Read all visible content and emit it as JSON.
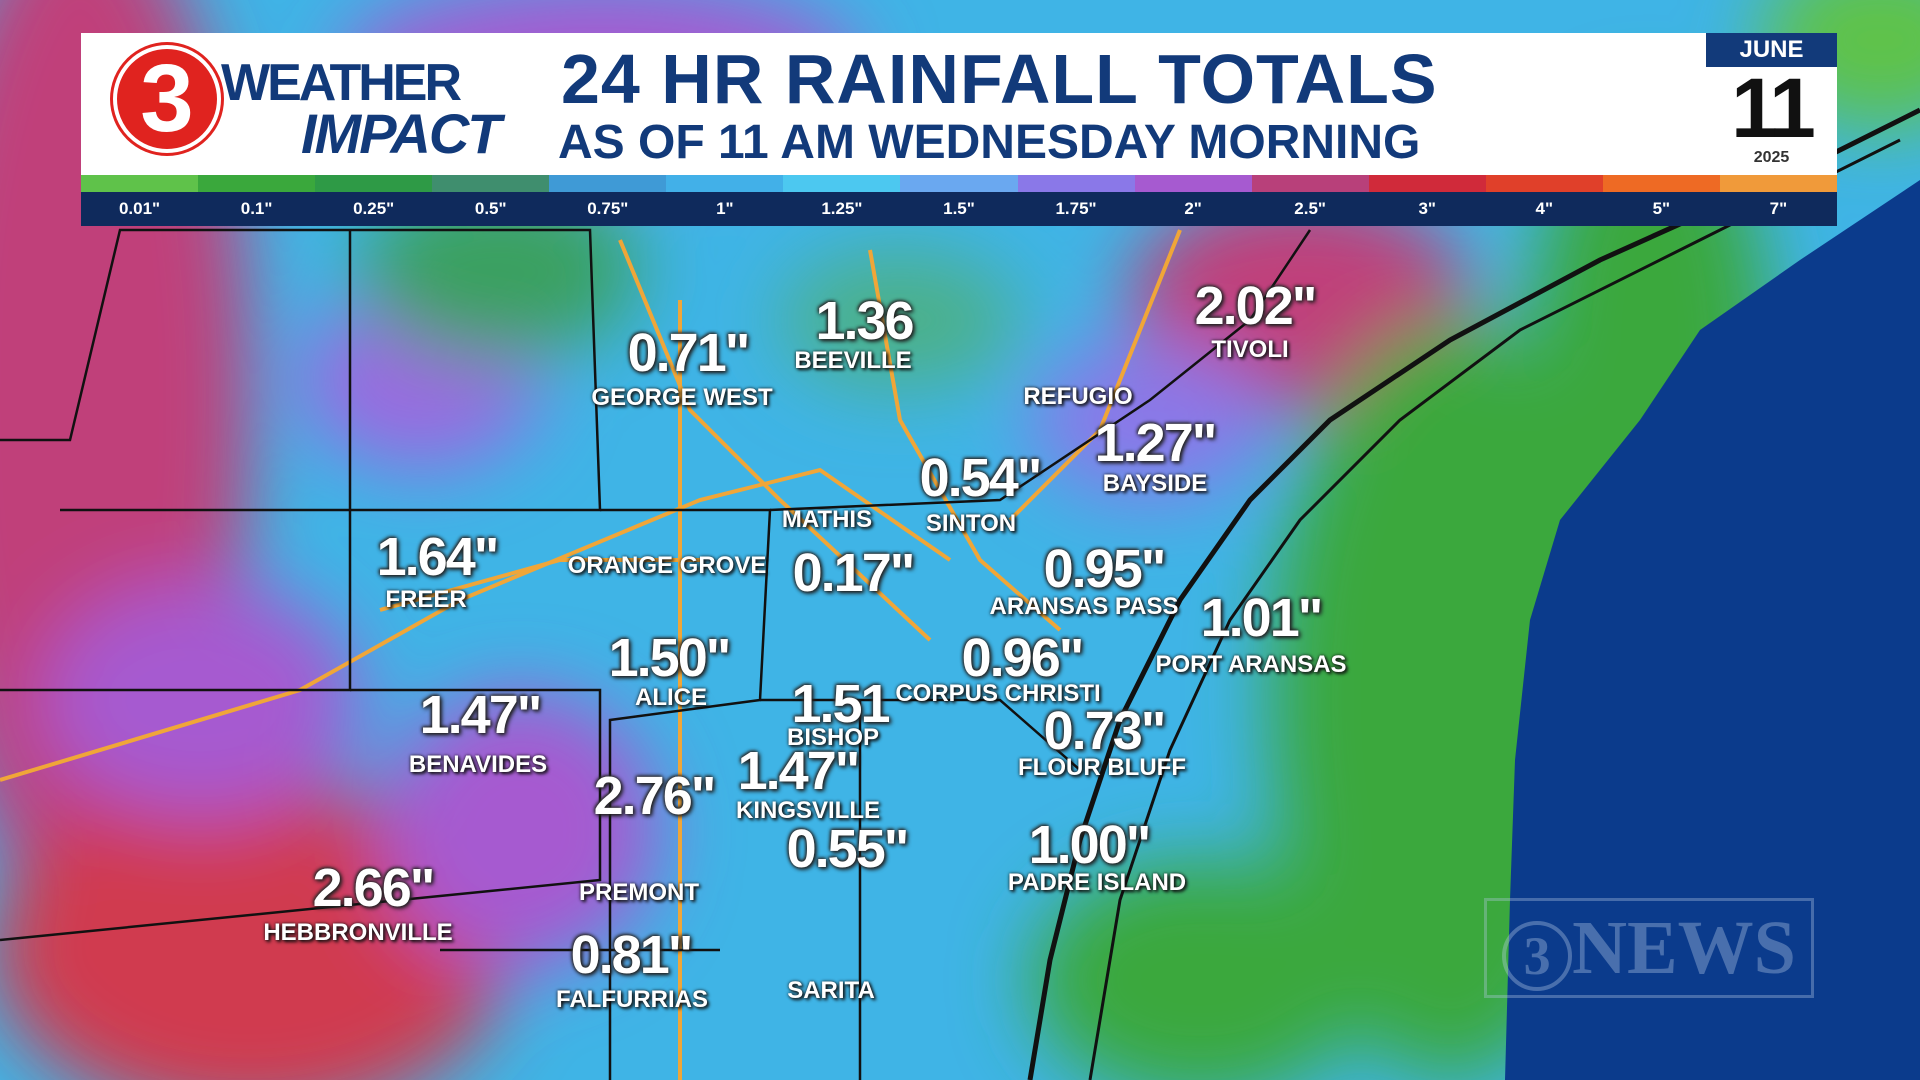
{
  "logo": {
    "number": "3",
    "line1": "WEATHER",
    "line2": "IMPACT"
  },
  "header": {
    "title": "24 HR RAINFALL TOTALS",
    "subtitle": "AS OF 11 AM WEDNESDAY MORNING"
  },
  "date": {
    "month": "JUNE",
    "day": "11",
    "year": "2025"
  },
  "legend": [
    {
      "label": "0.01\"",
      "color": "#5fc24a"
    },
    {
      "label": "0.1\"",
      "color": "#3aa83c"
    },
    {
      "label": "0.25\"",
      "color": "#2e9a46"
    },
    {
      "label": "0.5\"",
      "color": "#3f8e6e"
    },
    {
      "label": "0.75\"",
      "color": "#3f9ad6"
    },
    {
      "label": "1\"",
      "color": "#42b0e8"
    },
    {
      "label": "1.25\"",
      "color": "#4cc8f0"
    },
    {
      "label": "1.5\"",
      "color": "#6aa8f0"
    },
    {
      "label": "1.75\"",
      "color": "#8a78e8"
    },
    {
      "label": "2\"",
      "color": "#a65ad0"
    },
    {
      "label": "2.5\"",
      "color": "#b8407a"
    },
    {
      "label": "3\"",
      "color": "#d02a3a"
    },
    {
      "label": "4\"",
      "color": "#e0402a"
    },
    {
      "label": "5\"",
      "color": "#ee6a24"
    },
    {
      "label": "7\"",
      "color": "#f09a3a"
    }
  ],
  "locations": [
    {
      "value": "0.71\"",
      "name": "GEORGE WEST"
    },
    {
      "value": "1.36",
      "name": "BEEVILLE"
    },
    {
      "value": "2.02\"",
      "name": "TIVOLI"
    },
    {
      "name": "REFUGIO"
    },
    {
      "value": "1.27\"",
      "name": "BAYSIDE"
    },
    {
      "value": "0.54\"",
      "name": "SINTON"
    },
    {
      "name": "MATHIS"
    },
    {
      "value": "1.64\"",
      "name": "FREER"
    },
    {
      "name": "ORANGE GROVE"
    },
    {
      "value": "0.17\""
    },
    {
      "value": "0.95\"",
      "name": "ARANSAS PASS"
    },
    {
      "value": "1.01\"",
      "name": "PORT ARANSAS"
    },
    {
      "value": "1.50\"",
      "name": "ALICE"
    },
    {
      "value": "0.96\"",
      "name": "CORPUS CHRISTI"
    },
    {
      "value": "1.47\"",
      "name": "BENAVIDES"
    },
    {
      "value": "1.51",
      "name": "BISHOP"
    },
    {
      "value": "0.73\"",
      "name": "FLOUR BLUFF"
    },
    {
      "value": "2.76\""
    },
    {
      "value": "1.47\"",
      "name": "KINGSVILLE"
    },
    {
      "value": "0.55\""
    },
    {
      "value": "1.00\"",
      "name": "PADRE ISLAND"
    },
    {
      "value": "2.66\"",
      "name": "HEBBRONVILLE"
    },
    {
      "name": "PREMONT"
    },
    {
      "value": "0.81\"",
      "name": "FALFURRIAS"
    },
    {
      "name": "SARITA"
    }
  ],
  "watermark": {
    "number": "3",
    "text": "NEWS"
  }
}
